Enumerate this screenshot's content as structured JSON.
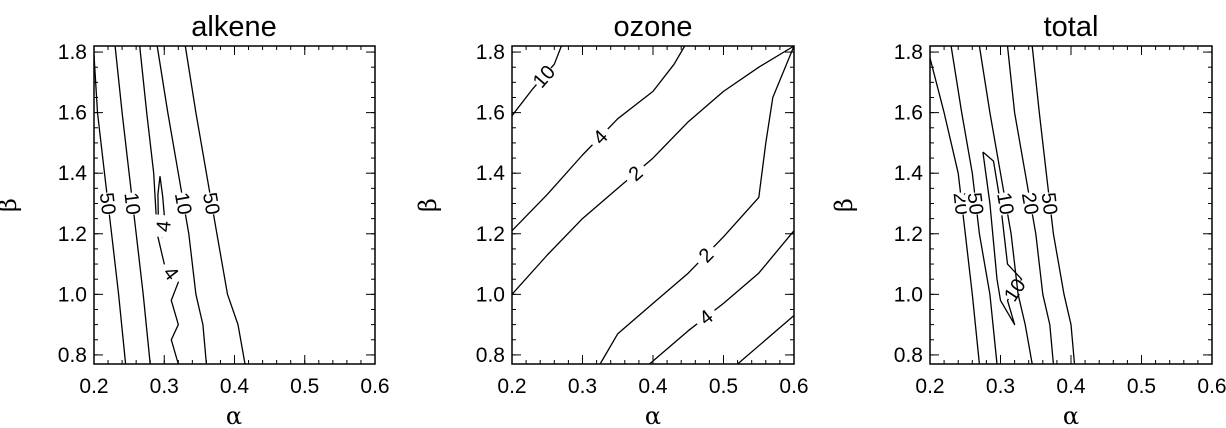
{
  "chart_data": [
    {
      "type": "contour",
      "title": "alkene",
      "xlabel": "α",
      "ylabel": "β",
      "xlim": [
        0.2,
        0.6
      ],
      "ylim": [
        0.77,
        1.82
      ],
      "xticks": [
        "0.2",
        "0.3",
        "0.4",
        "0.5",
        "0.6"
      ],
      "yticks": [
        "0.8",
        "1.0",
        "1.2",
        "1.4",
        "1.6",
        "1.8"
      ],
      "contours": [
        {
          "level": "50",
          "points": [
            [
              0.2,
              1.79
            ],
            [
              0.205,
              1.6
            ],
            [
              0.215,
              1.4
            ],
            [
              0.225,
              1.2
            ],
            [
              0.235,
              1.0
            ],
            [
              0.245,
              0.77
            ]
          ]
        },
        {
          "level": "10",
          "points": [
            [
              0.23,
              1.82
            ],
            [
              0.24,
              1.6
            ],
            [
              0.25,
              1.4
            ],
            [
              0.26,
              1.2
            ],
            [
              0.27,
              1.0
            ],
            [
              0.28,
              0.77
            ]
          ]
        },
        {
          "level": "4",
          "points": [
            [
              0.265,
              1.82
            ],
            [
              0.275,
              1.6
            ],
            [
              0.285,
              1.4
            ],
            [
              0.29,
              1.2
            ],
            [
              0.3,
              1.1
            ],
            [
              0.32,
              1.04
            ],
            [
              0.31,
              0.98
            ],
            [
              0.32,
              0.9
            ],
            [
              0.31,
              0.85
            ],
            [
              0.32,
              0.77
            ]
          ]
        },
        {
          "level": "4",
          "points": [
            [
              0.294,
              1.39
            ],
            [
              0.298,
              1.32
            ],
            [
              0.3,
              1.26
            ],
            [
              0.297,
              1.19
            ],
            [
              0.292,
              1.2
            ],
            [
              0.291,
              1.33
            ],
            [
              0.294,
              1.39
            ]
          ]
        },
        {
          "level": "10",
          "points": [
            [
              0.29,
              1.82
            ],
            [
              0.305,
              1.6
            ],
            [
              0.32,
              1.4
            ],
            [
              0.335,
              1.2
            ],
            [
              0.345,
              1.0
            ],
            [
              0.355,
              0.9
            ],
            [
              0.36,
              0.77
            ]
          ]
        },
        {
          "level": "50",
          "points": [
            [
              0.33,
              1.82
            ],
            [
              0.345,
              1.6
            ],
            [
              0.36,
              1.4
            ],
            [
              0.375,
              1.2
            ],
            [
              0.39,
              1.0
            ],
            [
              0.405,
              0.9
            ],
            [
              0.415,
              0.77
            ]
          ]
        }
      ]
    },
    {
      "type": "contour",
      "title": "ozone",
      "xlabel": "α",
      "ylabel": "β",
      "xlim": [
        0.2,
        0.6
      ],
      "ylim": [
        0.77,
        1.82
      ],
      "xticks": [
        "0.2",
        "0.3",
        "0.4",
        "0.5",
        "0.6"
      ],
      "yticks": [
        "0.8",
        "1.0",
        "1.2",
        "1.4",
        "1.6",
        "1.8"
      ],
      "contours": [
        {
          "level": "10",
          "points": [
            [
              0.2,
              1.59
            ],
            [
              0.23,
              1.68
            ],
            [
              0.26,
              1.76
            ],
            [
              0.27,
              1.82
            ]
          ]
        },
        {
          "level": "4",
          "points": [
            [
              0.2,
              1.21
            ],
            [
              0.25,
              1.33
            ],
            [
              0.3,
              1.46
            ],
            [
              0.35,
              1.58
            ],
            [
              0.4,
              1.67
            ],
            [
              0.43,
              1.76
            ],
            [
              0.445,
              1.82
            ]
          ]
        },
        {
          "level": "2",
          "points": [
            [
              0.2,
              1.0
            ],
            [
              0.25,
              1.13
            ],
            [
              0.3,
              1.25
            ],
            [
              0.35,
              1.35
            ],
            [
              0.4,
              1.45
            ],
            [
              0.45,
              1.57
            ],
            [
              0.5,
              1.67
            ],
            [
              0.55,
              1.75
            ],
            [
              0.6,
              1.82
            ]
          ]
        },
        {
          "level": "2",
          "points": [
            [
              0.325,
              0.77
            ],
            [
              0.35,
              0.87
            ],
            [
              0.4,
              0.97
            ],
            [
              0.45,
              1.07
            ],
            [
              0.5,
              1.19
            ],
            [
              0.55,
              1.32
            ],
            [
              0.56,
              1.5
            ],
            [
              0.57,
              1.65
            ],
            [
              0.6,
              1.82
            ]
          ]
        },
        {
          "level": "4",
          "points": [
            [
              0.395,
              0.77
            ],
            [
              0.45,
              0.88
            ],
            [
              0.5,
              0.97
            ],
            [
              0.55,
              1.07
            ],
            [
              0.6,
              1.21
            ]
          ]
        },
        {
          "level": "",
          "points": [
            [
              0.52,
              0.77
            ],
            [
              0.56,
              0.85
            ],
            [
              0.6,
              0.93
            ]
          ]
        }
      ]
    },
    {
      "type": "contour",
      "title": "total",
      "xlabel": "α",
      "ylabel": "β",
      "xlim": [
        0.2,
        0.6
      ],
      "ylim": [
        0.77,
        1.82
      ],
      "xticks": [
        "0.2",
        "0.3",
        "0.4",
        "0.5",
        "0.6"
      ],
      "yticks": [
        "0.8",
        "1.0",
        "1.2",
        "1.4",
        "1.6",
        "1.8"
      ],
      "contours": [
        {
          "level": "20",
          "points": [
            [
              0.2,
              1.78
            ],
            [
              0.22,
              1.6
            ],
            [
              0.24,
              1.4
            ],
            [
              0.25,
              1.2
            ],
            [
              0.26,
              1.0
            ],
            [
              0.27,
              0.77
            ]
          ]
        },
        {
          "level": "50",
          "points": [
            [
              0.23,
              1.82
            ],
            [
              0.245,
              1.6
            ],
            [
              0.26,
              1.4
            ],
            [
              0.27,
              1.2
            ],
            [
              0.285,
              1.0
            ],
            [
              0.295,
              0.77
            ]
          ]
        },
        {
          "level": "10",
          "points": [
            [
              0.275,
              1.47
            ],
            [
              0.29,
              1.44
            ],
            [
              0.3,
              1.3
            ],
            [
              0.31,
              1.1
            ],
            [
              0.33,
              1.05
            ],
            [
              0.31,
              0.98
            ],
            [
              0.32,
              0.9
            ],
            [
              0.3,
              0.98
            ],
            [
              0.295,
              1.05
            ],
            [
              0.285,
              1.3
            ],
            [
              0.275,
              1.47
            ]
          ]
        },
        {
          "level": "10",
          "points": [
            [
              0.27,
              1.82
            ],
            [
              0.285,
              1.6
            ],
            [
              0.3,
              1.4
            ],
            [
              0.315,
              1.2
            ],
            [
              0.325,
              1.0
            ],
            [
              0.335,
              0.9
            ],
            [
              0.345,
              0.77
            ]
          ]
        },
        {
          "level": "20",
          "points": [
            [
              0.31,
              1.82
            ],
            [
              0.32,
              1.6
            ],
            [
              0.335,
              1.4
            ],
            [
              0.35,
              1.2
            ],
            [
              0.36,
              1.0
            ],
            [
              0.37,
              0.9
            ],
            [
              0.375,
              0.77
            ]
          ]
        },
        {
          "level": "50",
          "points": [
            [
              0.345,
              1.82
            ],
            [
              0.355,
              1.6
            ],
            [
              0.365,
              1.4
            ],
            [
              0.375,
              1.2
            ],
            [
              0.39,
              1.0
            ],
            [
              0.4,
              0.9
            ],
            [
              0.405,
              0.77
            ]
          ]
        }
      ]
    }
  ]
}
